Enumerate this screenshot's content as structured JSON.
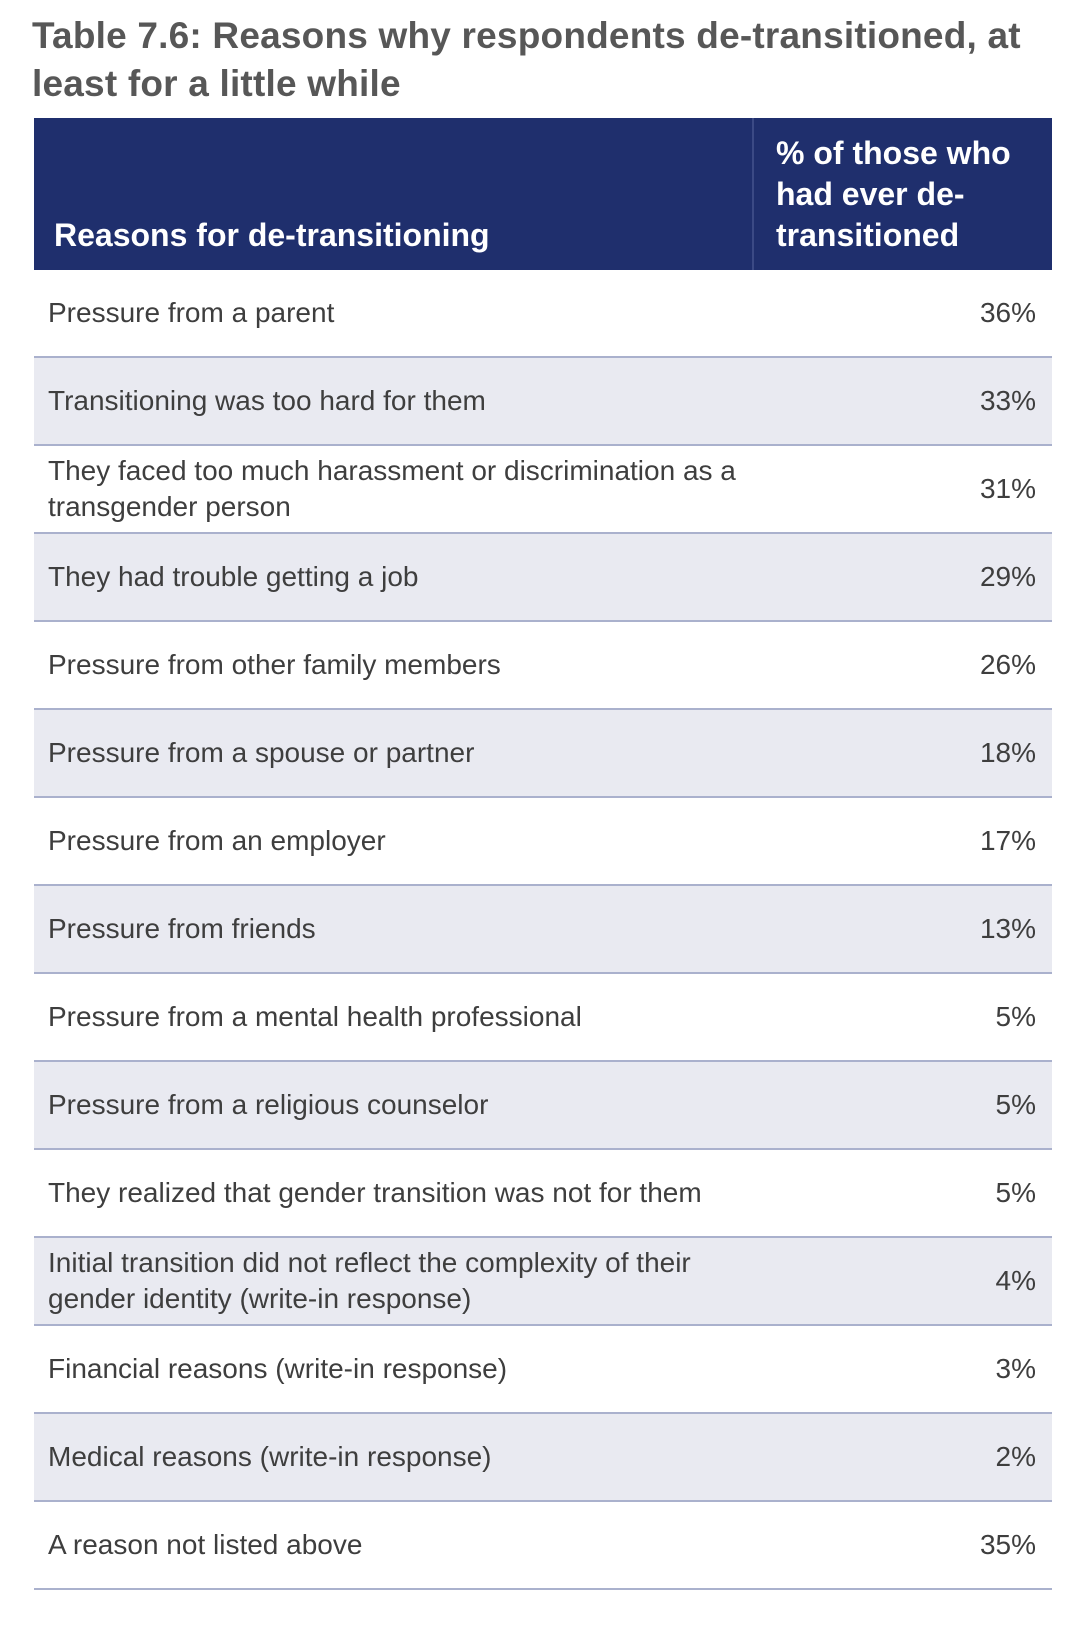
{
  "title": "Table 7.6: Reasons why respondents de-transitioned, at least for a little while",
  "table": {
    "header": {
      "reason": "Reasons for de-transitioning",
      "percent": "% of those who had ever de-transitioned"
    },
    "rows": [
      {
        "reason": "Pressure from a parent",
        "percent": "36%"
      },
      {
        "reason": "Transitioning was too hard for them",
        "percent": "33%"
      },
      {
        "reason": "They faced too much harassment or discrimination as a transgender person",
        "percent": "31%"
      },
      {
        "reason": "They had trouble getting a job",
        "percent": "29%"
      },
      {
        "reason": "Pressure from other family members",
        "percent": "26%"
      },
      {
        "reason": "Pressure from a spouse or partner",
        "percent": "18%"
      },
      {
        "reason": "Pressure from an employer",
        "percent": "17%"
      },
      {
        "reason": "Pressure from friends",
        "percent": "13%"
      },
      {
        "reason": "Pressure from a mental health professional",
        "percent": "5%"
      },
      {
        "reason": "Pressure from a religious counselor",
        "percent": "5%"
      },
      {
        "reason": "They realized that gender transition was not for them",
        "percent": "5%"
      },
      {
        "reason": "Initial transition did not reflect the complexity of their gender identity (write-in response)",
        "percent": "4%"
      },
      {
        "reason": "Financial reasons (write-in response)",
        "percent": "3%"
      },
      {
        "reason": "Medical reasons (write-in response)",
        "percent": "2%"
      },
      {
        "reason": "A reason not listed above",
        "percent": "35%"
      }
    ]
  },
  "colors": {
    "header_bg": "#1f2f6d",
    "row_alt_bg": "#e9eaf1",
    "row_border": "#aab1cd",
    "title_text": "#575757"
  }
}
